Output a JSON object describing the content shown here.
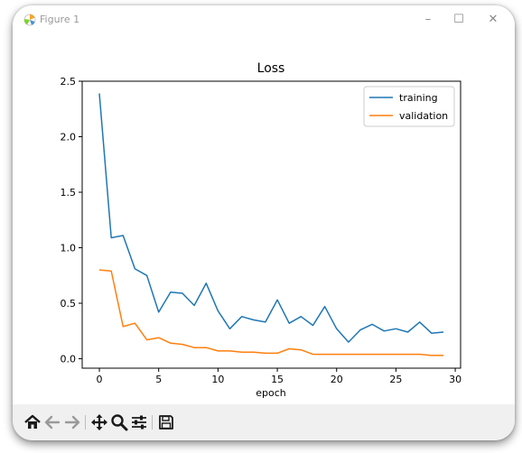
{
  "window": {
    "title": "Figure 1",
    "controls": {
      "minimize": "–",
      "maximize": "☐",
      "close": "✕"
    }
  },
  "toolbar": {
    "icons": [
      "home-icon",
      "back-icon",
      "forward-icon",
      "pan-icon",
      "zoom-icon",
      "configure-subplots-icon",
      "save-icon"
    ]
  },
  "chart_data": {
    "type": "line",
    "title": "Loss",
    "xlabel": "epoch",
    "ylabel": "",
    "xlim": [
      -1.45,
      30.45
    ],
    "ylim": [
      -0.085,
      2.5
    ],
    "xticks": [
      0,
      5,
      10,
      15,
      20,
      25,
      30
    ],
    "xtick_labels": [
      "0",
      "5",
      "10",
      "15",
      "20",
      "25",
      "30"
    ],
    "yticks": [
      0.0,
      0.5,
      1.0,
      1.5,
      2.0,
      2.5
    ],
    "ytick_labels": [
      "0.0",
      "0.5",
      "1.0",
      "1.5",
      "2.0",
      "2.5"
    ],
    "grid": false,
    "legend_position": "top-right",
    "x": [
      0,
      1,
      2,
      3,
      4,
      5,
      6,
      7,
      8,
      9,
      10,
      11,
      12,
      13,
      14,
      15,
      16,
      17,
      18,
      19,
      20,
      21,
      22,
      23,
      24,
      25,
      26,
      27,
      28,
      29
    ],
    "series": [
      {
        "name": "training",
        "color": "#1f77b4",
        "values": [
          2.39,
          1.09,
          1.11,
          0.81,
          0.75,
          0.42,
          0.6,
          0.59,
          0.48,
          0.68,
          0.43,
          0.27,
          0.38,
          0.35,
          0.33,
          0.53,
          0.32,
          0.38,
          0.3,
          0.47,
          0.27,
          0.15,
          0.26,
          0.31,
          0.25,
          0.27,
          0.24,
          0.33,
          0.23,
          0.24
        ]
      },
      {
        "name": "validation",
        "color": "#ff7f0e",
        "values": [
          0.8,
          0.79,
          0.29,
          0.32,
          0.17,
          0.19,
          0.14,
          0.13,
          0.1,
          0.1,
          0.07,
          0.07,
          0.06,
          0.06,
          0.05,
          0.05,
          0.09,
          0.08,
          0.04,
          0.04,
          0.04,
          0.04,
          0.04,
          0.04,
          0.04,
          0.04,
          0.04,
          0.04,
          0.03,
          0.03
        ]
      }
    ]
  }
}
